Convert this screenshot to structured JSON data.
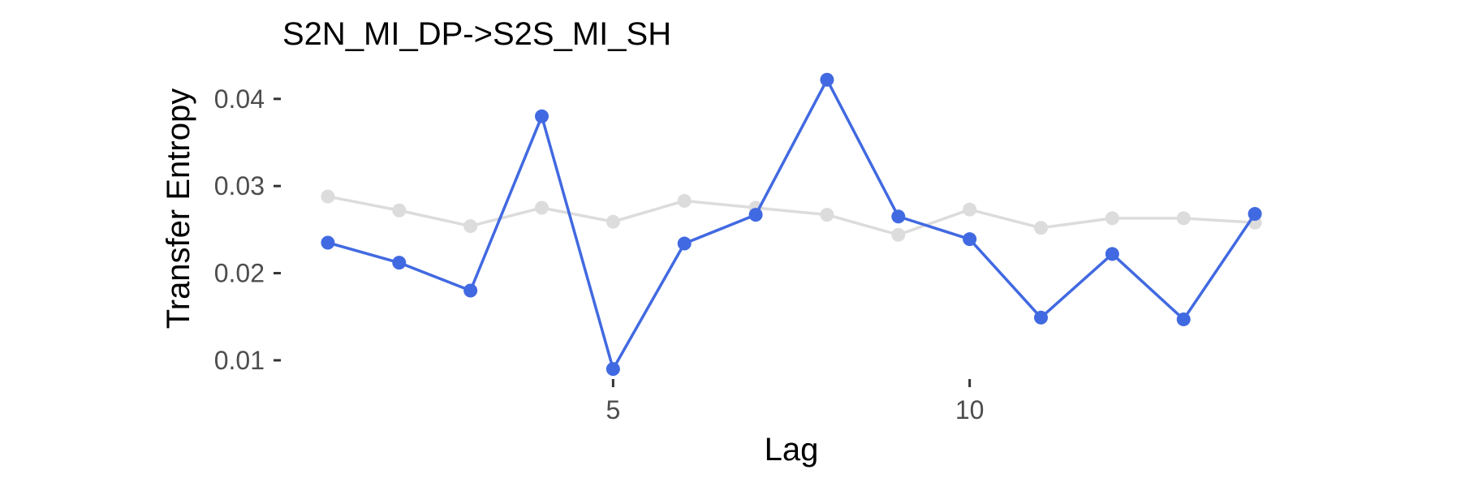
{
  "chart_data": {
    "type": "line",
    "title": "S2N_MI_DP->S2S_MI_SH",
    "xlabel": "Lag",
    "ylabel": "Transfer Entropy",
    "x": [
      1,
      2,
      3,
      4,
      5,
      6,
      7,
      8,
      9,
      10,
      11,
      12,
      13,
      14
    ],
    "xlim": [
      0.5,
      14.5
    ],
    "ylim": [
      0.0085,
      0.0425
    ],
    "xticks": [
      5,
      10
    ],
    "xtick_labels": [
      "5",
      "10"
    ],
    "yticks": [
      0.01,
      0.02,
      0.03,
      0.04
    ],
    "ytick_labels": [
      "0.01",
      "0.02",
      "0.03",
      "0.04"
    ],
    "grid": false,
    "legend": "none",
    "series": [
      {
        "color": "#dcdcdc",
        "values": [
          0.0288,
          0.0272,
          0.0254,
          0.0275,
          0.0259,
          0.0283,
          0.0275,
          0.0267,
          0.0244,
          0.0273,
          0.0252,
          0.0263,
          0.0263,
          0.0258
        ]
      },
      {
        "color": "#4169e1",
        "values": [
          0.0235,
          0.0212,
          0.018,
          0.038,
          0.009,
          0.0234,
          0.0267,
          0.0422,
          0.0265,
          0.0239,
          0.0149,
          0.0222,
          0.0147,
          0.0268
        ]
      }
    ]
  }
}
